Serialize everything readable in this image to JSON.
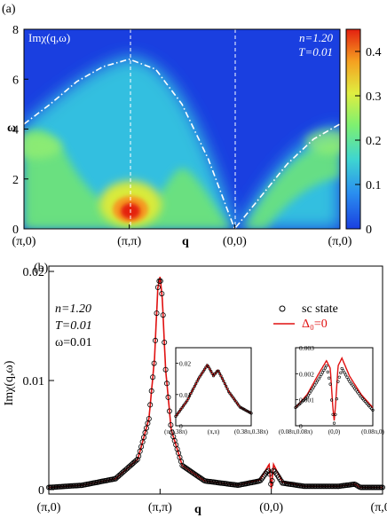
{
  "figure": {
    "panel_a_label": "(a)",
    "panel_b_label": "(b)"
  },
  "chart_data": [
    {
      "type": "heatmap",
      "panel": "(a)",
      "quantity_label": "Imχ(q,ω)",
      "annotation_n": "n=1.20",
      "annotation_T": "T=0.01",
      "xlabel": "q",
      "ylabel": "ω",
      "x_path": [
        "(π,0)",
        "(π,π)",
        "(0,0)",
        "(π,0)"
      ],
      "x_positions": [
        0,
        1,
        2,
        3
      ],
      "ylim": [
        0,
        8
      ],
      "yticks": [
        0,
        2,
        4,
        6,
        8
      ],
      "colorbar": {
        "range": [
          0,
          0.45
        ],
        "ticks": [
          0,
          0.1,
          0.2,
          0.3,
          0.4
        ],
        "colors": [
          "#1a3fe0",
          "#2a8ff0",
          "#3fd6d0",
          "#7ef070",
          "#e0ee40",
          "#f5a020",
          "#e42010"
        ]
      },
      "background_color": "#1a3fe0",
      "continuum_edge": {
        "style": "dash-dot",
        "color": "#ffffff",
        "x": [
          0,
          0.25,
          0.5,
          0.75,
          1.0,
          1.25,
          1.5,
          1.75,
          2.0,
          2.25,
          2.5,
          2.75,
          3.0
        ],
        "y": [
          4.2,
          5.0,
          5.9,
          6.5,
          6.8,
          6.4,
          5.0,
          2.8,
          0.0,
          1.3,
          2.6,
          3.6,
          4.2
        ]
      },
      "vertical_dashed_lines_x": [
        1,
        2
      ],
      "intensity_hotspots": [
        {
          "x": 1.0,
          "omega": 0.6,
          "value": 0.43
        },
        {
          "x": 1.0,
          "omega": 1.5,
          "value": 0.22
        },
        {
          "x": 0.1,
          "omega": 3.2,
          "value": 0.16
        },
        {
          "x": 2.8,
          "omega": 3.3,
          "value": 0.16
        }
      ]
    },
    {
      "type": "line",
      "panel": "(b)",
      "xlabel": "q",
      "ylabel": "Imχ(q,ω)",
      "annotation_n": "n=1.20",
      "annotation_T": "T=0.01",
      "annotation_omega": "ω=0.01",
      "x_path": [
        "(π,0)",
        "(π,π)",
        "(0,0)",
        "(π,0)"
      ],
      "x_positions": [
        0,
        1,
        2,
        3
      ],
      "ylim": [
        0,
        0.02
      ],
      "yticks": [
        0,
        0.01,
        0.02
      ],
      "ytick_labels": [
        "0",
        "0.01",
        "0.02"
      ],
      "legend_position": "top-right",
      "series": [
        {
          "name": "sc state",
          "marker": "open-circle",
          "color": "#000000",
          "x": [
            0,
            0.3,
            0.6,
            0.8,
            0.9,
            0.95,
            0.98,
            1.0,
            1.02,
            1.05,
            1.1,
            1.2,
            1.4,
            1.7,
            1.9,
            1.95,
            1.98,
            2.0,
            2.02,
            2.05,
            2.1,
            2.3,
            2.6,
            2.75,
            2.8,
            2.85,
            3.0
          ],
          "y": [
            0.0002,
            0.0004,
            0.001,
            0.0028,
            0.0065,
            0.012,
            0.0185,
            0.0195,
            0.0175,
            0.011,
            0.0055,
            0.0022,
            0.0008,
            0.0004,
            0.0008,
            0.0015,
            0.0018,
            0.0002,
            0.0018,
            0.0014,
            0.0006,
            0.0003,
            0.0003,
            0.0005,
            0.0002,
            0.0002,
            0.0002
          ]
        },
        {
          "name": "Δ₀=0",
          "marker": "line",
          "color": "#e01010",
          "x": [
            0,
            0.3,
            0.6,
            0.8,
            0.9,
            0.95,
            0.98,
            1.0,
            1.02,
            1.05,
            1.1,
            1.2,
            1.4,
            1.7,
            1.9,
            1.95,
            1.98,
            2.0,
            2.02,
            2.05,
            2.1,
            2.3,
            2.6,
            2.75,
            2.8,
            2.85,
            3.0
          ],
          "y": [
            0.0002,
            0.0004,
            0.001,
            0.0028,
            0.0065,
            0.012,
            0.0185,
            0.0195,
            0.0175,
            0.011,
            0.0055,
            0.0022,
            0.0008,
            0.0004,
            0.0009,
            0.0018,
            0.0023,
            0.0001,
            0.0023,
            0.0017,
            0.0007,
            0.0003,
            0.0003,
            0.0005,
            0.0002,
            0.0002,
            0.0002
          ]
        }
      ],
      "insets": [
        {
          "xtick_labels": [
            "(π,0.38π)",
            "(π,π)",
            "(0.38π,0.38π)"
          ],
          "ylim": [
            0,
            0.025
          ],
          "yticks": [
            0,
            0.01,
            0.02
          ],
          "ytick_labels": [
            "0",
            "0.01",
            "0.02"
          ],
          "x": [
            0,
            0.15,
            0.3,
            0.42,
            0.5,
            0.56,
            0.62,
            0.7,
            0.85,
            1.0
          ],
          "y": [
            0.003,
            0.008,
            0.015,
            0.0195,
            0.016,
            0.0178,
            0.015,
            0.011,
            0.006,
            0.004
          ]
        },
        {
          "xtick_labels": [
            "(0.08π,0.08π)",
            "(0,0)",
            "(0.08π,0)"
          ],
          "ylim": [
            0,
            0.003
          ],
          "yticks": [
            0,
            0.001,
            0.002,
            0.003
          ],
          "ytick_labels": [
            "0",
            "0.001",
            "0.002",
            "0.003"
          ],
          "x": [
            0,
            0.15,
            0.3,
            0.4,
            0.45,
            0.48,
            0.5,
            0.52,
            0.55,
            0.6,
            0.7,
            0.85,
            1.0
          ],
          "y_sc": [
            0.0007,
            0.0011,
            0.0018,
            0.0023,
            0.0016,
            0.0005,
            0.0001,
            0.0005,
            0.0017,
            0.0022,
            0.0017,
            0.0011,
            0.0006
          ],
          "y_normal": [
            0.0007,
            0.0012,
            0.002,
            0.0025,
            0.0022,
            0.0008,
            0.0002,
            0.0009,
            0.0023,
            0.0026,
            0.0019,
            0.0012,
            0.0007
          ]
        }
      ]
    }
  ]
}
